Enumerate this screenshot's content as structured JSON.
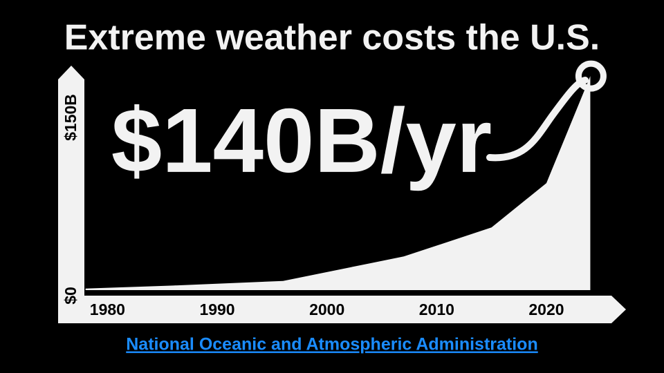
{
  "chart_data": {
    "type": "area",
    "title": "Extreme weather costs the U.S.",
    "annotation": "$140B/yr",
    "x": [
      1978,
      1986,
      1996,
      2007,
      2015,
      2020,
      2024
    ],
    "values": [
      1,
      3,
      6,
      22,
      41,
      70,
      140
    ],
    "color": "#f2f2f2",
    "xlim": [
      1975.5,
      2027.25
    ],
    "ylim": [
      0,
      150
    ],
    "xticks": [
      1980,
      1990,
      2000,
      2010,
      2020
    ],
    "yticks": [
      {
        "value": 0,
        "label": "$0"
      },
      {
        "value": 150,
        "label": "$150B"
      }
    ],
    "source": "National Oceanic and Atmospheric Administration"
  }
}
